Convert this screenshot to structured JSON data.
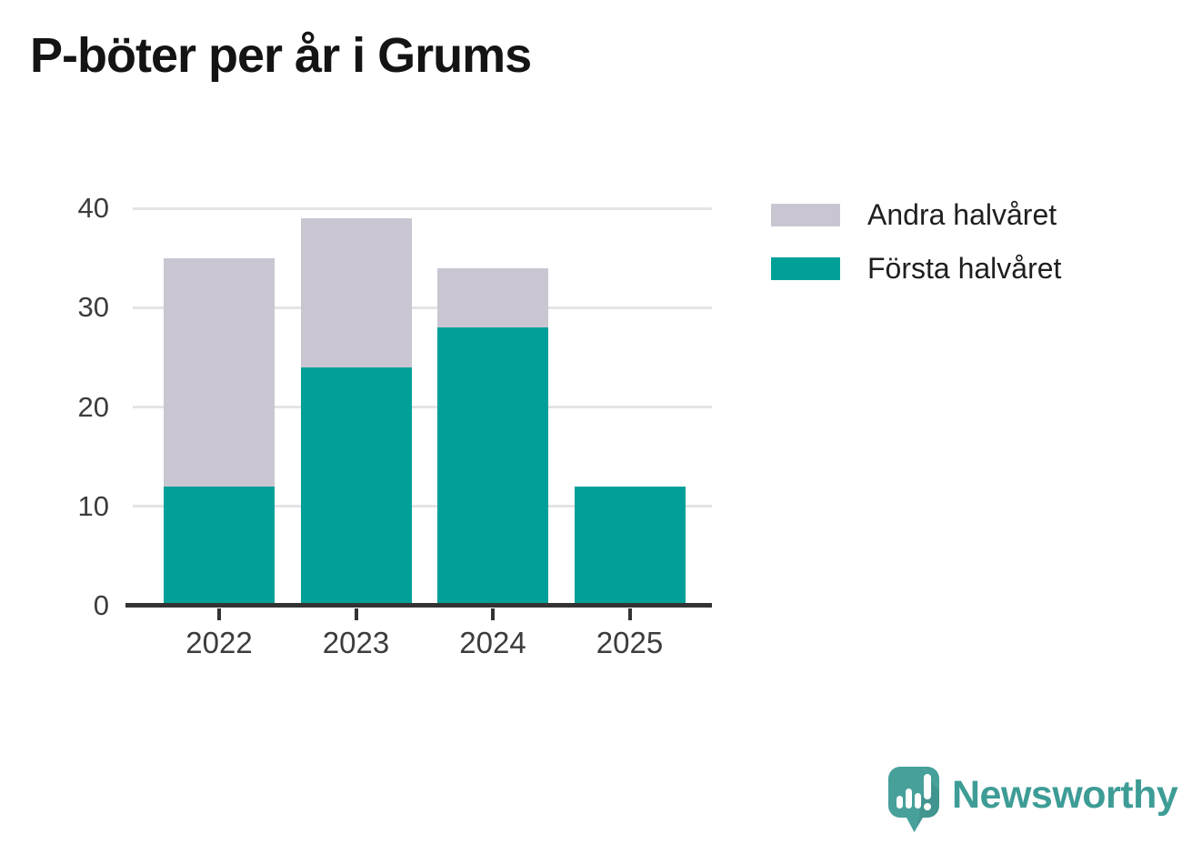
{
  "chart": {
    "title": "P-böter per år i Grums"
  },
  "chart_data": {
    "type": "bar",
    "stacked": true,
    "title": "P-böter per år i Grums",
    "categories": [
      "2022",
      "2023",
      "2024",
      "2025"
    ],
    "series": [
      {
        "name": "Första halvåret",
        "color": "#00a099",
        "values": [
          12,
          24,
          28,
          12
        ]
      },
      {
        "name": "Andra halvåret",
        "color": "#c9c6d2",
        "values": [
          23,
          15,
          6,
          0
        ]
      }
    ],
    "totals": [
      35,
      39,
      34,
      12
    ],
    "xlabel": "",
    "ylabel": "",
    "ylim": [
      0,
      40
    ],
    "yticks": [
      0,
      10,
      20,
      30,
      40
    ],
    "grid": "horizontal",
    "legend_position": "right"
  },
  "legend": {
    "items": [
      {
        "label": "Andra halvåret",
        "color": "#c9c6d2"
      },
      {
        "label": "Första halvåret",
        "color": "#00a099"
      }
    ]
  },
  "branding": {
    "logo_text": "Newsworthy",
    "logo_color": "#3e9c96"
  },
  "colors": {
    "first_half": "#00a099",
    "second_half": "#c9c6d2",
    "gridline": "#e4e4e6",
    "axis": "#333333",
    "tick_text": "#3c3c3c",
    "title_text": "#141414"
  }
}
